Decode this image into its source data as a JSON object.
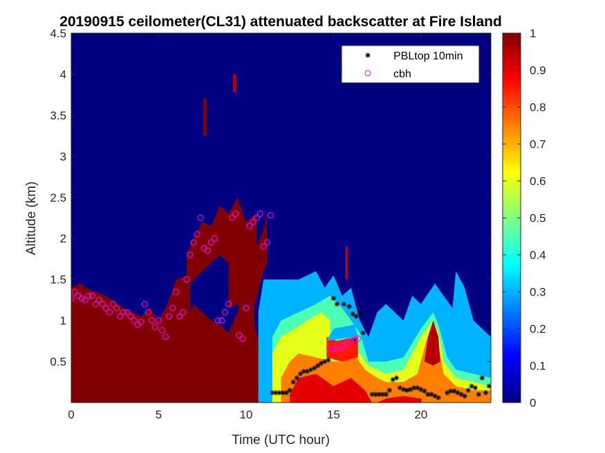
{
  "chart_data": {
    "type": "heatmap",
    "title": "20190915 ceilometer(CL31) attenuated backscatter at Fire Island",
    "xlabel": "Time (UTC hour)",
    "ylabel": "Altitude (km)",
    "xlim": [
      0,
      24
    ],
    "ylim": [
      0,
      4.5
    ],
    "xticks": [
      0,
      5,
      10,
      15,
      20
    ],
    "xtick_labels": [
      "0",
      "5",
      "10",
      "15",
      "20"
    ],
    "yticks": [
      0.5,
      1,
      1.5,
      2,
      2.5,
      3,
      3.5,
      4,
      4.5
    ],
    "ytick_labels": [
      "0.5",
      "1",
      "1.5",
      "2",
      "2.5",
      "3",
      "3.5",
      "4",
      "4.5"
    ],
    "colorbar": {
      "colormap": "jet",
      "range": [
        0,
        1
      ],
      "ticks": [
        0,
        0.1,
        0.2,
        0.3,
        0.4,
        0.5,
        0.6,
        0.7,
        0.8,
        0.9,
        1
      ],
      "tick_labels": [
        "0",
        "0.1",
        "0.2",
        "0.3",
        "0.4",
        "0.5",
        "0.6",
        "0.7",
        "0.8",
        "0.9",
        "1"
      ]
    },
    "legend": {
      "position": "top-right",
      "entries": [
        {
          "name": "PBLtop 10min",
          "marker": "asterisk",
          "color": "#000000"
        },
        {
          "name": "cbh",
          "marker": "circle",
          "color": "#ff00ff"
        }
      ]
    },
    "background_value": 0,
    "regions": [
      {
        "value": 1.0,
        "polygon": [
          [
            0,
            0
          ],
          [
            0,
            1.4
          ],
          [
            0.5,
            1.45
          ],
          [
            1,
            1.38
          ],
          [
            2,
            1.3
          ],
          [
            3,
            1.15
          ],
          [
            4,
            1.05
          ],
          [
            4.5,
            1.15
          ],
          [
            5,
            1.0
          ],
          [
            5.5,
            1.2
          ],
          [
            6,
            1.5
          ],
          [
            6.6,
            1.55
          ],
          [
            6.6,
            1.8
          ],
          [
            7,
            2.0
          ],
          [
            7.5,
            2.2
          ],
          [
            8,
            2.15
          ],
          [
            8.5,
            2.4
          ],
          [
            9,
            2.3
          ],
          [
            9.5,
            2.5
          ],
          [
            10,
            2.2
          ],
          [
            10.6,
            2.3
          ],
          [
            10.6,
            1.9
          ],
          [
            11,
            2.1
          ],
          [
            11.2,
            2.3
          ],
          [
            11.2,
            1.7
          ],
          [
            11.0,
            1.6
          ],
          [
            10.5,
            1.2
          ],
          [
            10.0,
            1.1
          ],
          [
            9.5,
            1.2
          ],
          [
            9.0,
            1.15
          ],
          [
            9.0,
            1.7
          ],
          [
            8.5,
            1.8
          ],
          [
            8,
            1.7
          ],
          [
            7.5,
            1.6
          ],
          [
            7,
            1.5
          ],
          [
            6.8,
            1.45
          ],
          [
            6.8,
            1.1
          ],
          [
            7,
            1.2
          ],
          [
            8,
            1.0
          ],
          [
            8.5,
            0.95
          ],
          [
            9,
            0.85
          ],
          [
            9.5,
            1.1
          ],
          [
            10,
            1.4
          ],
          [
            10.4,
            1.5
          ],
          [
            10.5,
            0.9
          ],
          [
            11,
            0.6
          ],
          [
            11.5,
            0.3
          ],
          [
            12,
            0.05
          ],
          [
            12,
            0
          ]
        ]
      },
      {
        "value": 0.3,
        "polygon": [
          [
            10.7,
            0
          ],
          [
            10.7,
            1.1
          ],
          [
            11,
            1.5
          ],
          [
            12,
            1.5
          ],
          [
            13,
            1.5
          ],
          [
            14,
            1.6
          ],
          [
            14.5,
            1.4
          ],
          [
            15,
            1.55
          ],
          [
            15.5,
            1.3
          ],
          [
            16,
            1.4
          ],
          [
            16.5,
            1.0
          ],
          [
            17,
            0.8
          ],
          [
            17.5,
            1.1
          ],
          [
            18,
            1.2
          ],
          [
            19,
            1.0
          ],
          [
            19.5,
            1.3
          ],
          [
            20,
            1.2
          ],
          [
            20.8,
            1.45
          ],
          [
            21.3,
            1.3
          ],
          [
            21.8,
            1.15
          ],
          [
            22,
            1.6
          ],
          [
            22.5,
            1.4
          ],
          [
            23,
            1.0
          ],
          [
            23.5,
            0.9
          ],
          [
            24,
            0.8
          ],
          [
            24,
            0
          ]
        ]
      },
      {
        "value": 0.45,
        "polygon": [
          [
            11.5,
            0
          ],
          [
            11.5,
            0.8
          ],
          [
            12,
            1.0
          ],
          [
            13,
            1.1
          ],
          [
            14,
            1.2
          ],
          [
            14.8,
            1.3
          ],
          [
            15.5,
            1.15
          ],
          [
            16,
            1.0
          ],
          [
            16.5,
            0.85
          ],
          [
            17,
            0.5
          ],
          [
            18,
            0.5
          ],
          [
            19,
            0.55
          ],
          [
            20,
            0.9
          ],
          [
            20.7,
            1.1
          ],
          [
            21,
            0.95
          ],
          [
            21.5,
            0.55
          ],
          [
            22,
            0.4
          ],
          [
            23,
            0.35
          ],
          [
            24,
            0.3
          ],
          [
            24,
            0
          ]
        ]
      },
      {
        "value": 0.6,
        "polygon": [
          [
            11.5,
            0
          ],
          [
            11.5,
            0.6
          ],
          [
            12,
            0.8
          ],
          [
            12.8,
            0.9
          ],
          [
            13.5,
            1.0
          ],
          [
            14.3,
            1.1
          ],
          [
            14.8,
            1.0
          ],
          [
            14.8,
            0.55
          ],
          [
            15.5,
            0.45
          ],
          [
            16.5,
            0.6
          ],
          [
            17,
            0.45
          ],
          [
            18,
            0.35
          ],
          [
            19,
            0.4
          ],
          [
            20,
            0.8
          ],
          [
            20.7,
            1.0
          ],
          [
            21,
            0.85
          ],
          [
            21.3,
            0.5
          ],
          [
            22,
            0.3
          ],
          [
            23,
            0.25
          ],
          [
            24,
            0.2
          ],
          [
            24,
            0
          ]
        ]
      },
      {
        "value": 0.75,
        "polygon": [
          [
            12,
            0
          ],
          [
            12,
            0.3
          ],
          [
            12.5,
            0.5
          ],
          [
            13,
            0.6
          ],
          [
            14,
            0.55
          ],
          [
            15,
            0.5
          ],
          [
            15.5,
            0.5
          ],
          [
            16.3,
            0.55
          ],
          [
            16.8,
            0.4
          ],
          [
            17.5,
            0.3
          ],
          [
            18,
            0.25
          ],
          [
            19,
            0.25
          ],
          [
            19.8,
            0.35
          ],
          [
            20.3,
            0.75
          ],
          [
            20.7,
            0.95
          ],
          [
            21,
            0.7
          ],
          [
            21.3,
            0.35
          ],
          [
            22,
            0.2
          ],
          [
            23,
            0.15
          ],
          [
            24,
            0.15
          ],
          [
            24,
            0
          ]
        ]
      },
      {
        "value": 0.9,
        "polygon": [
          [
            12.5,
            0
          ],
          [
            12.5,
            0.1
          ],
          [
            13,
            0.3
          ],
          [
            14,
            0.35
          ],
          [
            15,
            0.2
          ],
          [
            16,
            0.3
          ],
          [
            16.8,
            0.15
          ],
          [
            17.2,
            0
          ],
          [
            17.5,
            0
          ],
          [
            18,
            0.05
          ],
          [
            19,
            0.08
          ],
          [
            20,
            0.05
          ],
          [
            20,
            0
          ]
        ]
      },
      {
        "value": 0.85,
        "polygon": [
          [
            14.6,
            0.55
          ],
          [
            14.6,
            0.8
          ],
          [
            15.2,
            0.75
          ],
          [
            15.8,
            0.78
          ],
          [
            16.4,
            0.8
          ],
          [
            16.4,
            0.55
          ],
          [
            15.5,
            0.5
          ]
        ]
      },
      {
        "value": 0.95,
        "polygon": [
          [
            20.2,
            0.5
          ],
          [
            20.4,
            0.8
          ],
          [
            20.7,
            1.0
          ],
          [
            21.0,
            0.8
          ],
          [
            21.1,
            0.5
          ],
          [
            20.7,
            0.45
          ]
        ]
      },
      {
        "value": 0.3,
        "polygon": [
          [
            14.6,
            0.75
          ],
          [
            15.0,
            0.9
          ],
          [
            16.2,
            0.95
          ],
          [
            16.4,
            0.8
          ],
          [
            15.5,
            0.78
          ]
        ]
      },
      {
        "value": 1.0,
        "polygon": [
          [
            7.55,
            3.25
          ],
          [
            7.55,
            3.7
          ],
          [
            7.75,
            3.7
          ],
          [
            7.75,
            3.25
          ]
        ]
      },
      {
        "value": 0.95,
        "polygon": [
          [
            9.25,
            3.78
          ],
          [
            9.25,
            4.0
          ],
          [
            9.45,
            4.0
          ],
          [
            9.45,
            3.78
          ]
        ]
      },
      {
        "value": 0.9,
        "polygon": [
          [
            15.7,
            1.5
          ],
          [
            15.7,
            1.9
          ],
          [
            15.8,
            1.9
          ],
          [
            15.8,
            1.5
          ]
        ]
      }
    ],
    "series": [
      {
        "name": "PBLtop 10min",
        "marker": "asterisk",
        "x": [
          15.0,
          15.2,
          15.6,
          15.9,
          16.1,
          16.3,
          16.5,
          16.7,
          16.2,
          11.5,
          11.7,
          11.9,
          12.1,
          12.3,
          12.5,
          12.7,
          12.9,
          13.1,
          13.3,
          13.5,
          13.7,
          13.9,
          14.1,
          14.3,
          14.5,
          14.7,
          17.2,
          17.4,
          17.6,
          17.8,
          18.0,
          18.2,
          18.4,
          18.6,
          18.8,
          19.0,
          19.2,
          19.4,
          19.6,
          19.8,
          20.0,
          20.2,
          20.4,
          20.6,
          20.8,
          21.0,
          21.5,
          21.7,
          21.9,
          22.1,
          22.3,
          22.5,
          22.7,
          22.9,
          23.1,
          23.3,
          23.5,
          23.7,
          23.9
        ],
        "y": [
          1.27,
          1.2,
          1.2,
          1.17,
          1.08,
          1.05,
          1.1,
          0.85,
          0.75,
          0.12,
          0.12,
          0.12,
          0.12,
          0.12,
          0.15,
          0.25,
          0.3,
          0.35,
          0.38,
          0.38,
          0.4,
          0.42,
          0.45,
          0.48,
          0.5,
          0.52,
          0.1,
          0.1,
          0.1,
          0.1,
          0.1,
          0.15,
          0.28,
          0.3,
          0.18,
          0.16,
          0.15,
          0.16,
          0.18,
          0.18,
          0.16,
          0.14,
          0.1,
          0.1,
          0.08,
          0.06,
          0.12,
          0.14,
          0.14,
          0.12,
          0.1,
          0.08,
          0.15,
          0.2,
          0.18,
          0.1,
          0.3,
          0.12,
          0.2
        ]
      },
      {
        "name": "cbh",
        "marker": "circle",
        "x": [
          0.0,
          0.2,
          0.4,
          0.6,
          0.8,
          1.0,
          1.2,
          1.4,
          1.6,
          1.8,
          2.0,
          2.2,
          2.4,
          2.6,
          2.8,
          3.0,
          3.2,
          3.4,
          3.6,
          3.8,
          4.0,
          4.2,
          4.4,
          4.6,
          4.8,
          5.0,
          5.2,
          5.4,
          5.6,
          5.8,
          6.0,
          6.2,
          6.4,
          6.6,
          6.8,
          7.0,
          7.2,
          7.4,
          7.6,
          7.8,
          8.0,
          8.2,
          8.4,
          8.6,
          8.8,
          9.0,
          9.2,
          9.4,
          9.6,
          9.8,
          10.0,
          10.2,
          10.4,
          10.6,
          10.8,
          11.0,
          11.2,
          11.4,
          14.8,
          15.0,
          15.2,
          15.4,
          15.6,
          15.8,
          16.0,
          16.2,
          16.4
        ],
        "y": [
          1.27,
          1.35,
          1.3,
          1.27,
          1.25,
          1.3,
          1.3,
          1.2,
          1.25,
          1.2,
          1.15,
          1.1,
          1.2,
          1.15,
          1.05,
          1.1,
          1.1,
          1.05,
          1.0,
          0.95,
          0.98,
          1.2,
          1.1,
          1.0,
          0.92,
          1.0,
          0.88,
          0.8,
          1.05,
          1.15,
          1.35,
          1.05,
          1.1,
          1.5,
          1.8,
          1.95,
          2.05,
          2.25,
          1.88,
          1.85,
          1.95,
          2.0,
          1.0,
          1.0,
          1.1,
          1.2,
          2.25,
          2.3,
          0.82,
          0.78,
          1.15,
          2.15,
          2.2,
          2.25,
          2.3,
          1.9,
          1.95,
          2.28,
          0.65,
          0.65,
          0.65,
          0.67,
          0.7,
          0.72,
          0.75,
          0.77,
          0.78
        ]
      }
    ]
  }
}
